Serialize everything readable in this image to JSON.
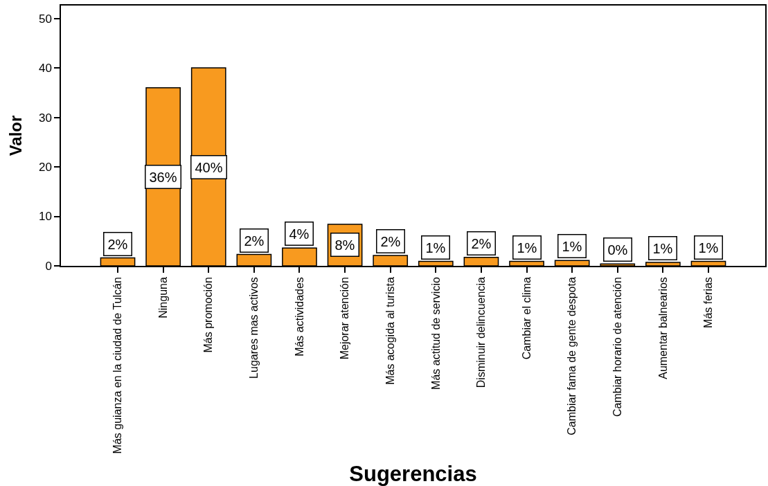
{
  "chart_data": {
    "type": "bar",
    "xlabel": "Sugerencias",
    "ylabel": "Valor",
    "categories": [
      "Más guianza en la ciudad de Tulcán",
      "Ninguna",
      "Más promoción",
      "Lugares mas activos",
      "Más actividades",
      "Mejorar atención",
      "Más acogida al turista",
      "Más actitud de servicio",
      "Disminuir delincuencia",
      "Cambiar el clima",
      "Cambiar fama de gente despota",
      "Cambiar horario de atención",
      "Aumentar balnearios",
      "Más ferias"
    ],
    "values": [
      1.6,
      36.0,
      40.0,
      2.3,
      3.6,
      8.4,
      2.1,
      0.9,
      1.7,
      0.9,
      1.1,
      0.4,
      0.7,
      0.9
    ],
    "value_labels": [
      "2%",
      "36%",
      "40%",
      "2%",
      "4%",
      "8%",
      "2%",
      "1%",
      "2%",
      "1%",
      "1%",
      "0%",
      "1%",
      "1%"
    ],
    "color": "#f89a1f",
    "ylim": [
      0,
      52.6
    ],
    "yticks": [
      0,
      10,
      20,
      30,
      40,
      50
    ]
  }
}
